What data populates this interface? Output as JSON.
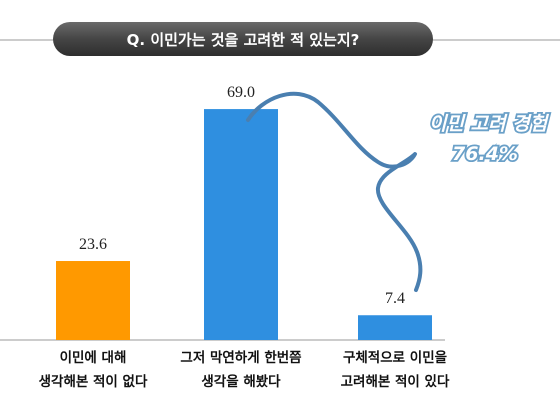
{
  "chart_data": {
    "type": "bar",
    "title": "Q. 이민가는 것을 고려한 적 있는지?",
    "categories": [
      [
        "이민에 대해",
        "생각해본 적이 없다"
      ],
      [
        "그저 막연하게 한번쯤",
        "생각을 해봤다"
      ],
      [
        "구체적으로 이민을",
        "고려해본 적이 있다"
      ]
    ],
    "values": [
      23.6,
      69.0,
      7.4
    ],
    "value_labels": [
      "23.6",
      "69.0",
      "7.4"
    ],
    "bar_colors": [
      "#ff9900",
      "#2f8fe0",
      "#2f8fe0"
    ],
    "ylim": [
      0,
      75
    ],
    "grid": false,
    "annotation": {
      "lines": [
        "이민 고려 경험",
        "76.4%"
      ],
      "value": 76.4,
      "brace_color": "#4a7fb0"
    }
  }
}
